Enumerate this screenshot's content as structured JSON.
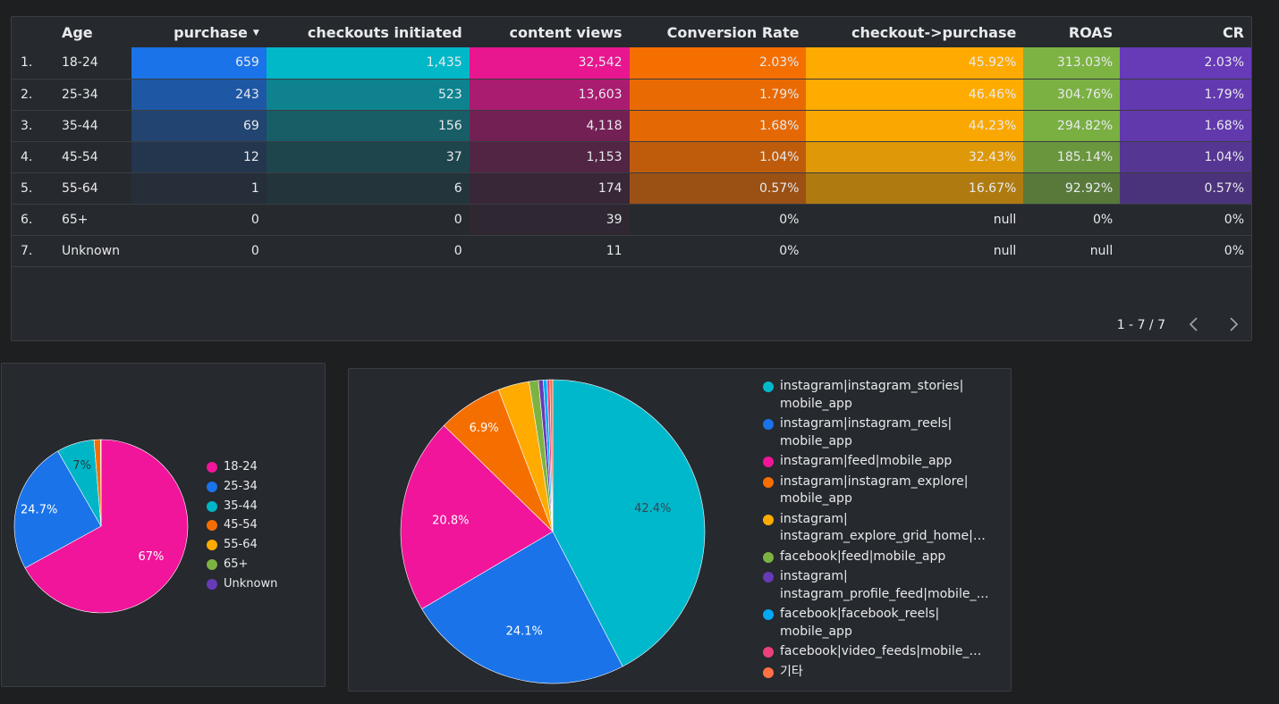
{
  "table": {
    "columns": [
      "",
      "Age",
      "purchase",
      "checkouts initiated",
      "content views",
      "Conversion Rate",
      "checkout->purchase",
      "ROAS",
      "CR"
    ],
    "sort_arrow": "▼",
    "rows": [
      {
        "idx": "1.",
        "age": "18-24",
        "purchase": "659",
        "checkouts": "1,435",
        "views": "32,542",
        "conv": "2.03%",
        "c2p": "45.92%",
        "roas": "313.03%",
        "cr": "2.03%"
      },
      {
        "idx": "2.",
        "age": "25-34",
        "purchase": "243",
        "checkouts": "523",
        "views": "13,603",
        "conv": "1.79%",
        "c2p": "46.46%",
        "roas": "304.76%",
        "cr": "1.79%"
      },
      {
        "idx": "3.",
        "age": "35-44",
        "purchase": "69",
        "checkouts": "156",
        "views": "4,118",
        "conv": "1.68%",
        "c2p": "44.23%",
        "roas": "294.82%",
        "cr": "1.68%"
      },
      {
        "idx": "4.",
        "age": "45-54",
        "purchase": "12",
        "checkouts": "37",
        "views": "1,153",
        "conv": "1.04%",
        "c2p": "32.43%",
        "roas": "185.14%",
        "cr": "1.04%"
      },
      {
        "idx": "5.",
        "age": "55-64",
        "purchase": "1",
        "checkouts": "6",
        "views": "174",
        "conv": "0.57%",
        "c2p": "16.67%",
        "roas": "92.92%",
        "cr": "0.57%"
      },
      {
        "idx": "6.",
        "age": "65+",
        "purchase": "0",
        "checkouts": "0",
        "views": "39",
        "conv": "0%",
        "c2p": "null",
        "roas": "0%",
        "cr": "0%"
      },
      {
        "idx": "7.",
        "age": "Unknown",
        "purchase": "0",
        "checkouts": "0",
        "views": "11",
        "conv": "0%",
        "c2p": "null",
        "roas": "null",
        "cr": "0%"
      }
    ],
    "heat_colors": {
      "purchase": "#1a73e8",
      "checkouts": "#00b8c8",
      "views": "#e8168f",
      "conv": "#f56e00",
      "c2p": "#ffab00",
      "roas": "#7cb342",
      "cr": "#673ab7"
    },
    "heat_levels": {
      "purchase": [
        1,
        0.37,
        0.105,
        0.02,
        0.002,
        0,
        0
      ],
      "checkouts": [
        1,
        0.36,
        0.11,
        0.026,
        0.004,
        0,
        0
      ],
      "views": [
        1,
        0.42,
        0.127,
        0.035,
        0.005,
        0.001,
        0
      ],
      "conv": [
        1,
        0.88,
        0.83,
        0.51,
        0.28,
        0,
        0
      ],
      "c2p": [
        0.99,
        1,
        0.95,
        0.7,
        0.36,
        0,
        0
      ],
      "roas": [
        1,
        0.97,
        0.94,
        0.59,
        0.3,
        0,
        0
      ],
      "cr": [
        1,
        0.88,
        0.83,
        0.51,
        0.28,
        0,
        0
      ]
    },
    "pager": "1 - 7 / 7",
    "prev_icon": "chevron-left-icon",
    "next_icon": "chevron-right-icon"
  },
  "chart_data": [
    {
      "type": "pie",
      "categories": [
        "18-24",
        "25-34",
        "35-44",
        "45-54",
        "55-64",
        "65+",
        "Unknown"
      ],
      "values": [
        67,
        24.7,
        7,
        1.2,
        0.1,
        0,
        0
      ],
      "slice_labels": [
        "67%",
        "24.7%",
        "7%",
        "",
        "",
        "",
        ""
      ],
      "colors": [
        "#f0159a",
        "#1a73e8",
        "#00b5c6",
        "#f56e00",
        "#ffab00",
        "#7cb342",
        "#673ab7"
      ],
      "legend_position": "right"
    },
    {
      "type": "pie",
      "categories": [
        "instagram|instagram_stories|\nmobile_app",
        "instagram|instagram_reels|\nmobile_app",
        "instagram|feed|mobile_app",
        "instagram|instagram_explore|\nmobile_app",
        "instagram|\ninstagram_explore_grid_home|…",
        "facebook|feed|mobile_app",
        "instagram|\ninstagram_profile_feed|mobile_…",
        "facebook|facebook_reels|\nmobile_app",
        "facebook|video_feeds|mobile_…",
        "기타"
      ],
      "values": [
        42.4,
        24.1,
        20.8,
        6.9,
        3.3,
        1.0,
        0.5,
        0.4,
        0.3,
        0.3
      ],
      "slice_labels": [
        "42.4%",
        "24.1%",
        "20.8%",
        "6.9%",
        "",
        "",
        "",
        "",
        "",
        ""
      ],
      "colors": [
        "#00b8cc",
        "#1a73e8",
        "#f0159a",
        "#f56e00",
        "#ffab00",
        "#7cb342",
        "#673ab7",
        "#03a9f4",
        "#ec407a",
        "#ff7043"
      ],
      "legend_position": "right"
    }
  ]
}
